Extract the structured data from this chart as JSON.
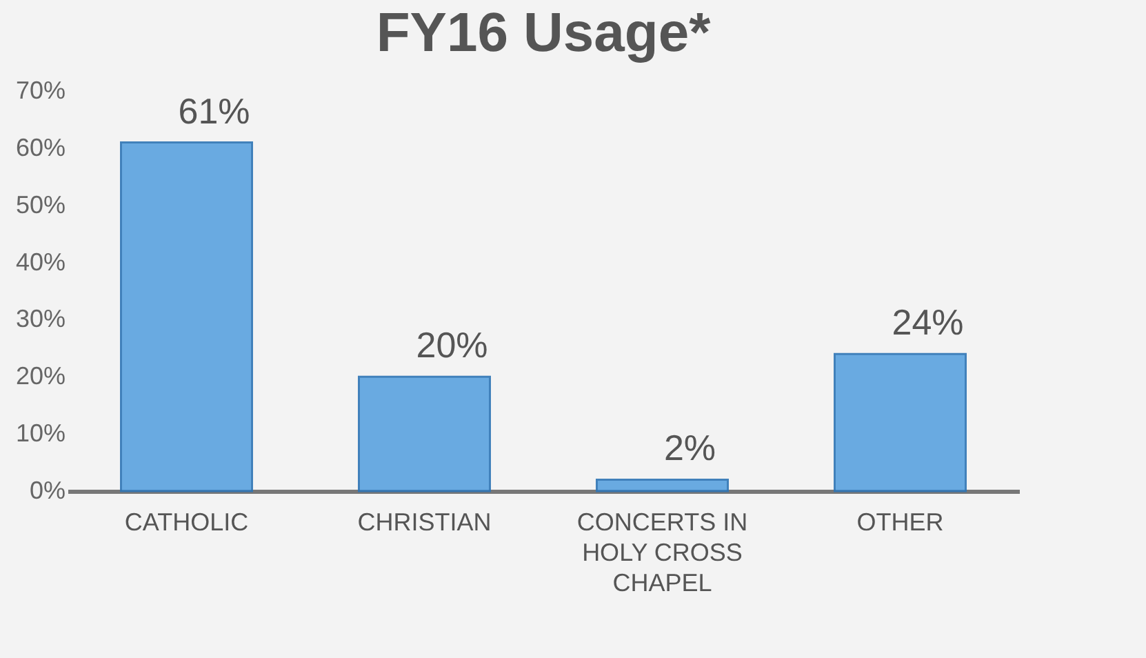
{
  "chart_data": {
    "type": "bar",
    "title": "FY16 Usage*",
    "categories": [
      "CATHOLIC",
      "CHRISTIAN",
      "CONCERTS IN HOLY CROSS CHAPEL",
      "OTHER"
    ],
    "values": [
      61,
      20,
      2,
      24
    ],
    "value_labels": [
      "61%",
      "20%",
      "2%",
      "24%"
    ],
    "color": "#5ba3e0",
    "ylim": [
      0,
      70
    ],
    "yticks": [
      {
        "value": 0,
        "label": "0%"
      },
      {
        "value": 10,
        "label": "10%"
      },
      {
        "value": 20,
        "label": "20%"
      },
      {
        "value": 30,
        "label": "30%"
      },
      {
        "value": 40,
        "label": "40%"
      },
      {
        "value": 50,
        "label": "50%"
      },
      {
        "value": 60,
        "label": "60%"
      },
      {
        "value": 70,
        "label": "70%"
      }
    ],
    "grid": false
  }
}
